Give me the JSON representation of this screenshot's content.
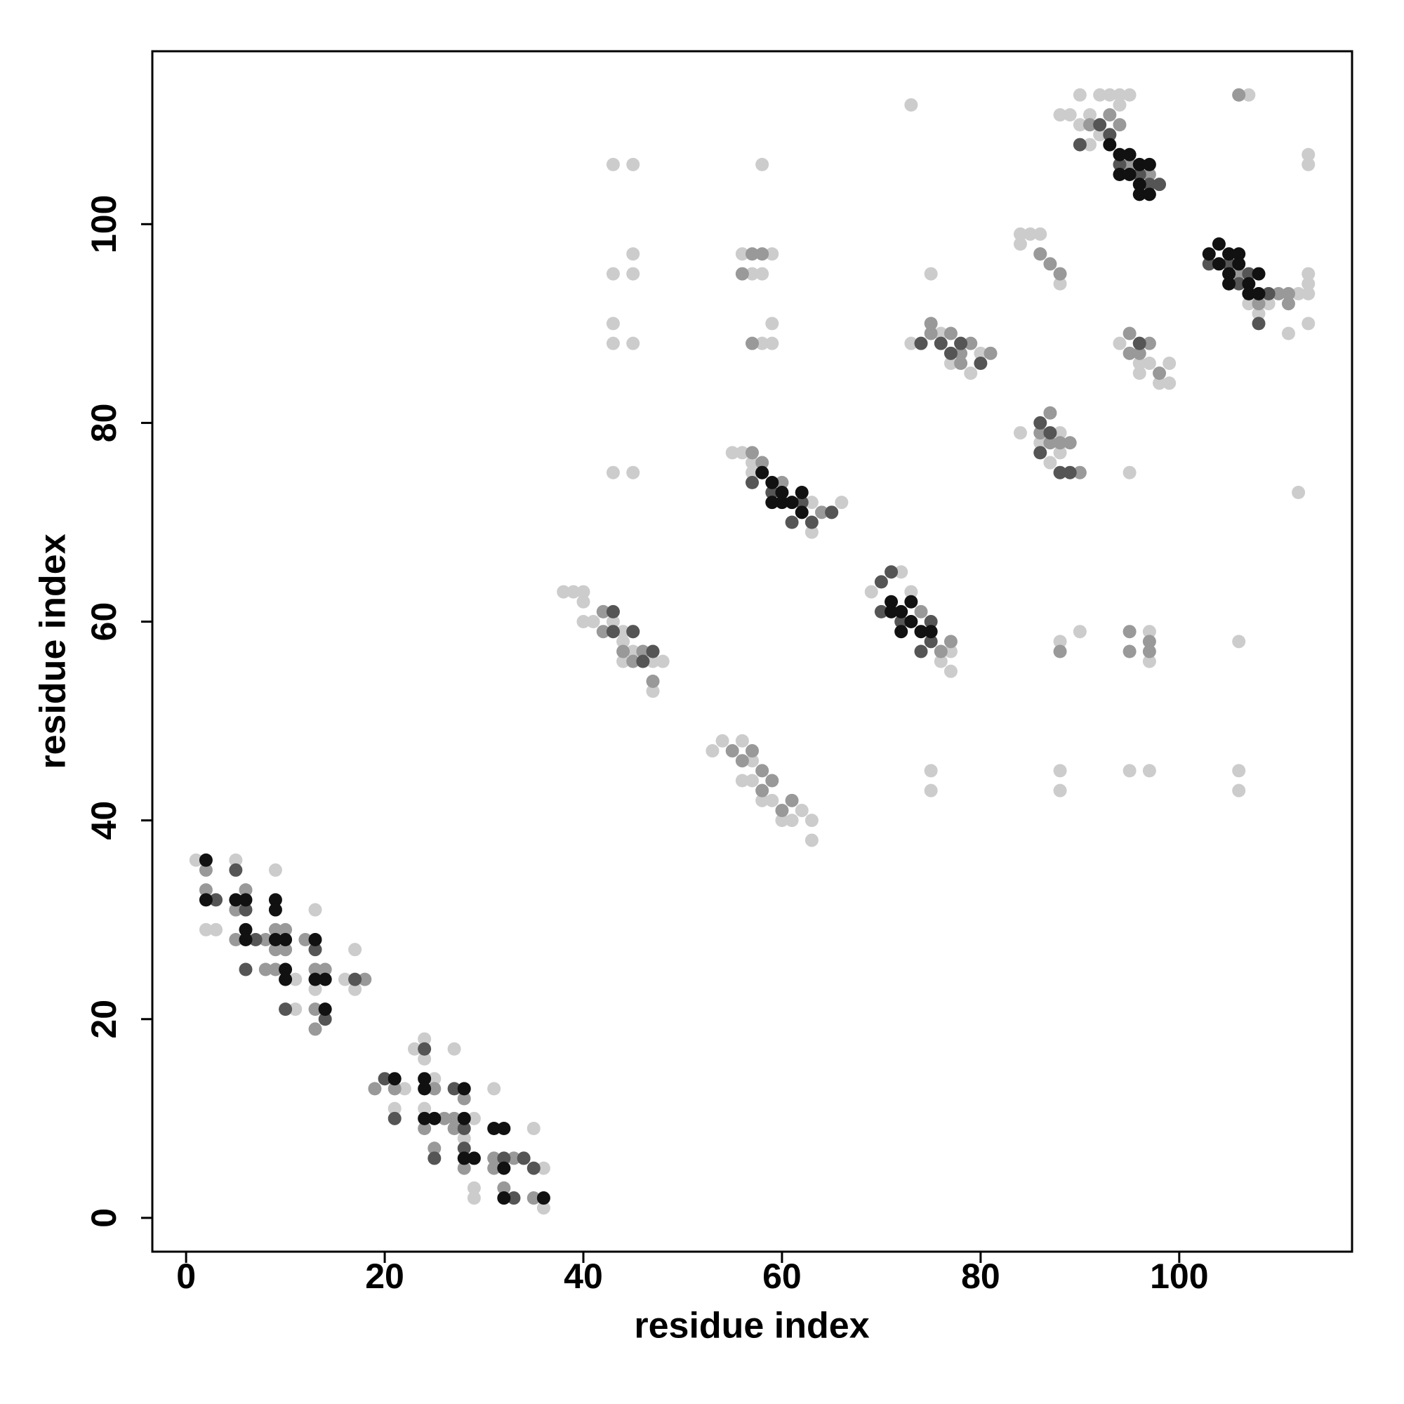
{
  "chart_data": {
    "type": "scatter",
    "x_label": "residue index",
    "y_label": "residue index",
    "xlim": [
      -3.4,
      117.4
    ],
    "ylim": [
      -3.4,
      117.4
    ],
    "xticks": [
      0,
      20,
      40,
      60,
      80,
      100
    ],
    "yticks": [
      0,
      20,
      40,
      60,
      80,
      100
    ],
    "grid": false,
    "series": [
      {
        "color": "#cccccc",
        "x": [
          1,
          5,
          9,
          2,
          3,
          13,
          17,
          11,
          11,
          13,
          16,
          17,
          10,
          6,
          23,
          24,
          24,
          22,
          21,
          24,
          25,
          27,
          29,
          28,
          31,
          29,
          29,
          35,
          36,
          36,
          34,
          38,
          39,
          40,
          40,
          40,
          41,
          42,
          43,
          44,
          44,
          44,
          45,
          47,
          48,
          47,
          53,
          54,
          56,
          56,
          57,
          58,
          59,
          60,
          61,
          62,
          63,
          63,
          57,
          55,
          56,
          57,
          63,
          63,
          66,
          57,
          69,
          72,
          73,
          75,
          76,
          77,
          77,
          43,
          45,
          58,
          43,
          45,
          43,
          45,
          45,
          43,
          43,
          45,
          56,
          57,
          58,
          59,
          58,
          59,
          59,
          73,
          75,
          75,
          88,
          88,
          88,
          90,
          95,
          97,
          97,
          97,
          106,
          106,
          106,
          112,
          95,
          75,
          73,
          76,
          77,
          79,
          80,
          88,
          89,
          90,
          90,
          91,
          92,
          93,
          94,
          95,
          92,
          91,
          94,
          84,
          85,
          86,
          84,
          86,
          88,
          84,
          86,
          87,
          88,
          88,
          94,
          96,
          96,
          97,
          98,
          99,
          99,
          96,
          107,
          108,
          109,
          111,
          112,
          113,
          113,
          113,
          113,
          113,
          113,
          106,
          107
        ],
        "values": [
          36,
          36,
          35,
          29,
          29,
          31,
          27,
          21,
          24,
          23,
          24,
          23,
          27,
          33,
          17,
          18,
          16,
          13,
          11,
          11,
          14,
          17,
          10,
          8,
          13,
          3,
          2,
          9,
          5,
          1,
          6,
          63,
          63,
          63,
          62,
          60,
          60,
          61,
          60,
          59,
          58,
          56,
          57,
          56,
          56,
          53,
          47,
          48,
          48,
          44,
          44,
          42,
          42,
          40,
          40,
          41,
          40,
          38,
          46,
          77,
          77,
          76,
          69,
          72,
          72,
          75,
          63,
          65,
          63,
          58,
          56,
          57,
          55,
          106,
          106,
          106,
          88,
          88,
          90,
          97,
          95,
          95,
          75,
          75,
          97,
          95,
          95,
          97,
          88,
          88,
          90,
          112,
          45,
          43,
          45,
          43,
          58,
          59,
          45,
          45,
          59,
          56,
          45,
          43,
          58,
          73,
          75,
          95,
          88,
          89,
          86,
          85,
          87,
          111,
          111,
          113,
          110,
          111,
          113,
          113,
          113,
          113,
          109,
          108,
          112,
          99,
          99,
          99,
          98,
          97,
          94,
          79,
          78,
          76,
          79,
          77,
          88,
          88,
          85,
          86,
          84,
          84,
          86,
          86,
          92,
          91,
          92,
          89,
          93,
          95,
          94,
          93,
          90,
          107,
          106,
          113,
          113
        ]
      },
      {
        "color": "#999999",
        "x": [
          2,
          2,
          6,
          5,
          5,
          8,
          9,
          9,
          10,
          10,
          12,
          13,
          14,
          13,
          13,
          18,
          8,
          9,
          19,
          21,
          24,
          25,
          25,
          26,
          27,
          27,
          28,
          28,
          31,
          31,
          33,
          32,
          35,
          42,
          42,
          44,
          45,
          46,
          47,
          45,
          55,
          56,
          57,
          58,
          58,
          59,
          60,
          61,
          57,
          56,
          58,
          57,
          57,
          58,
          60,
          64,
          65,
          74,
          76,
          77,
          88,
          95,
          95,
          97,
          97,
          75,
          75,
          77,
          78,
          79,
          78,
          81,
          86,
          87,
          88,
          87,
          86,
          88,
          89,
          90,
          87,
          91,
          93,
          93,
          94,
          95,
          97,
          95,
          95,
          96,
          97,
          98,
          106,
          108,
          110,
          111,
          111,
          105,
          106
        ],
        "values": [
          35,
          33,
          33,
          31,
          28,
          25,
          27,
          25,
          29,
          27,
          28,
          25,
          25,
          21,
          19,
          24,
          28,
          29,
          13,
          13,
          9,
          13,
          7,
          10,
          10,
          9,
          12,
          5,
          6,
          5,
          6,
          3,
          2,
          61,
          59,
          57,
          59,
          57,
          54,
          56,
          47,
          46,
          47,
          45,
          43,
          44,
          41,
          42,
          97,
          95,
          97,
          88,
          77,
          76,
          74,
          71,
          71,
          61,
          57,
          58,
          57,
          57,
          59,
          58,
          57,
          90,
          89,
          89,
          87,
          88,
          86,
          87,
          97,
          96,
          95,
          81,
          79,
          78,
          78,
          75,
          78,
          110,
          111,
          109,
          110,
          106,
          105,
          89,
          87,
          87,
          88,
          85,
          95,
          92,
          93,
          92,
          93,
          96,
          113
        ]
      },
      {
        "color": "#555555",
        "x": [
          5,
          3,
          6,
          6,
          7,
          10,
          14,
          13,
          17,
          20,
          21,
          24,
          25,
          28,
          28,
          27,
          34,
          35,
          33,
          32,
          43,
          45,
          46,
          47,
          43,
          57,
          58,
          59,
          62,
          63,
          65,
          61,
          70,
          70,
          71,
          72,
          75,
          74,
          75,
          74,
          76,
          77,
          78,
          80,
          86,
          86,
          87,
          89,
          88,
          90,
          92,
          93,
          94,
          96,
          97,
          98,
          96,
          103,
          105,
          106,
          107,
          108,
          109
        ],
        "values": [
          35,
          32,
          31,
          25,
          28,
          21,
          20,
          27,
          24,
          14,
          10,
          17,
          6,
          7,
          9,
          13,
          6,
          5,
          2,
          6,
          61,
          59,
          56,
          57,
          59,
          74,
          75,
          73,
          72,
          70,
          71,
          70,
          64,
          61,
          65,
          60,
          60,
          57,
          58,
          88,
          88,
          87,
          88,
          86,
          80,
          77,
          79,
          75,
          75,
          108,
          110,
          109,
          106,
          105,
          104,
          104,
          88,
          96,
          96,
          94,
          95,
          90,
          93
        ]
      },
      {
        "color": "#111111",
        "x": [
          2,
          2,
          5,
          6,
          6,
          6,
          9,
          9,
          9,
          10,
          10,
          10,
          13,
          13,
          14,
          14,
          21,
          24,
          24,
          24,
          25,
          28,
          28,
          28,
          29,
          31,
          32,
          32,
          32,
          36,
          58,
          59,
          59,
          60,
          60,
          61,
          62,
          62,
          71,
          71,
          72,
          72,
          73,
          73,
          74,
          75,
          93,
          94,
          94,
          95,
          95,
          96,
          96,
          96,
          97,
          97,
          103,
          104,
          104,
          105,
          105,
          105,
          106,
          106,
          107,
          107,
          108,
          108
        ],
        "values": [
          36,
          32,
          32,
          32,
          29,
          28,
          32,
          31,
          28,
          28,
          25,
          24,
          28,
          24,
          24,
          21,
          14,
          14,
          13,
          10,
          10,
          13,
          10,
          6,
          6,
          9,
          9,
          5,
          2,
          2,
          75,
          74,
          72,
          73,
          72,
          72,
          71,
          73,
          62,
          61,
          61,
          59,
          60,
          62,
          59,
          59,
          108,
          107,
          105,
          107,
          105,
          106,
          104,
          103,
          106,
          103,
          97,
          96,
          98,
          97,
          95,
          94,
          97,
          96,
          94,
          93,
          95,
          93
        ]
      }
    ]
  }
}
